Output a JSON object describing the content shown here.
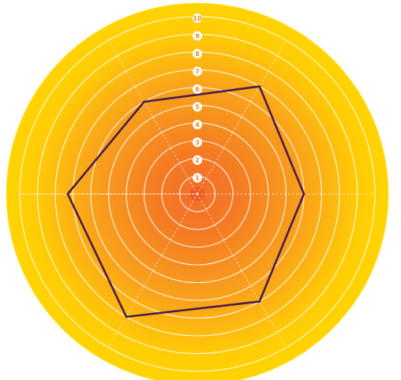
{
  "chart_data": {
    "type": "radar",
    "radial_range": [
      0,
      10
    ],
    "tick_labels": [
      "1",
      "2",
      "3",
      "4",
      "5",
      "6",
      "7",
      "8",
      "9",
      "10"
    ],
    "axes_count": 6,
    "values": [
      7.0,
      6.0,
      7.0,
      8.0,
      7.3,
      6.0
    ],
    "grid": true,
    "colors": {
      "outer_glow": "#ffe25a",
      "outer_fill": "#ffd400",
      "mid_fill": "#fbae17",
      "center_fill": "#f26f2a",
      "center_dot": "#f15a24",
      "grid_lines": "#ffffff",
      "tick_label": "#f08a1c",
      "series_line": "#4a1c4e"
    }
  }
}
